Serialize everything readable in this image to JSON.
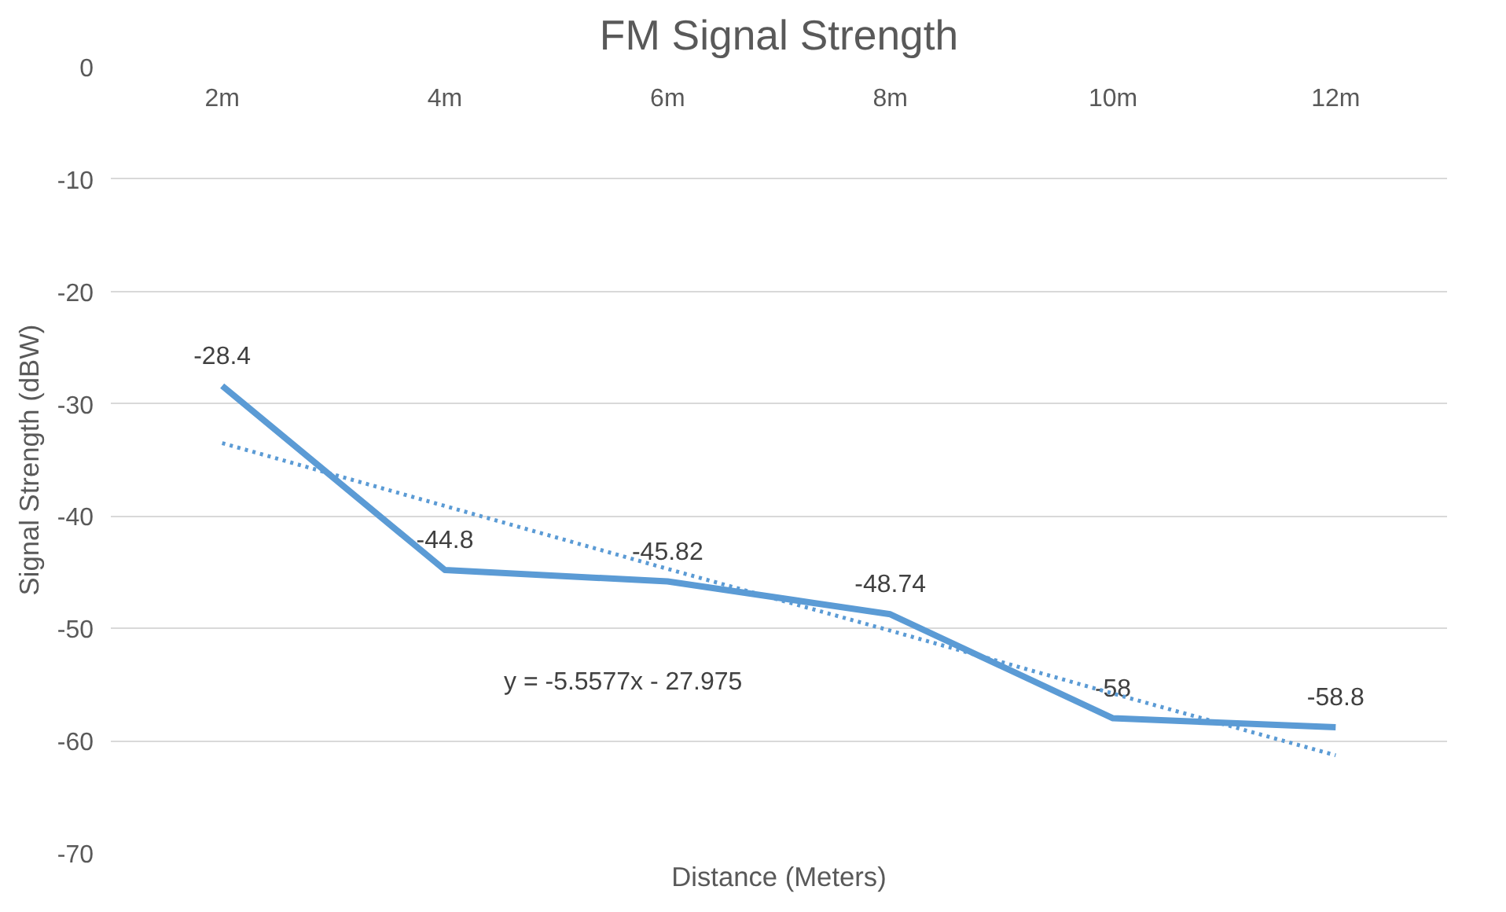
{
  "chart_data": {
    "type": "line",
    "title": "FM Signal Strength",
    "xlabel": "Distance (Meters)",
    "ylabel": "Signal Strength (dBW)",
    "categories": [
      "2m",
      "4m",
      "6m",
      "8m",
      "10m",
      "12m"
    ],
    "series": [
      {
        "color": "#5b9bd5",
        "values": [
          -28.4,
          -44.8,
          -45.82,
          -48.74,
          -58,
          -58.8
        ],
        "value_labels": [
          "-28.4",
          "-44.8",
          "-45.82",
          "-48.74",
          "-58",
          "-58.8"
        ],
        "line_style": "solid"
      },
      {
        "color": "#5b9bd5",
        "values": [
          -33.5,
          -39.1,
          -44.7,
          -50.2,
          -55.8,
          -61.3
        ],
        "line_style": "dotted"
      }
    ],
    "annotations": [
      "y = -5.5577x - 27.975"
    ],
    "ylim": [
      -70,
      0
    ],
    "yticks": [
      -70,
      -60,
      -50,
      -40,
      -30,
      -20,
      -10,
      0
    ],
    "grid": "y",
    "marker": "none"
  }
}
